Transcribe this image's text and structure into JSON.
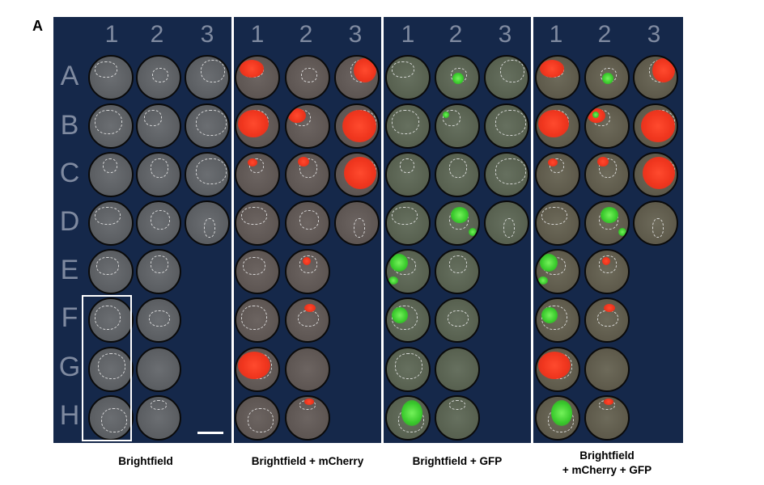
{
  "panel_letter": "A",
  "panels": [
    {
      "caption": "Brightfield",
      "column_labels": [
        "1",
        "2",
        "3"
      ]
    },
    {
      "caption": "Brightfield + mCherry",
      "column_labels": [
        "1",
        "2",
        "3"
      ]
    },
    {
      "caption": "Brightfield + GFP",
      "column_labels": [
        "1",
        "2",
        "3"
      ]
    },
    {
      "caption_line1": "Brightfield",
      "caption_line2": "+ mCherry + GFP",
      "column_labels": [
        "1",
        "2",
        "3"
      ]
    }
  ],
  "row_labels": [
    "A",
    "B",
    "C",
    "D",
    "E",
    "F",
    "G",
    "H"
  ],
  "colors": {
    "background": "#15284a",
    "label_gray": "#7f8aa0",
    "mcherry": "#f0361e",
    "gfp": "#38c82b"
  }
}
